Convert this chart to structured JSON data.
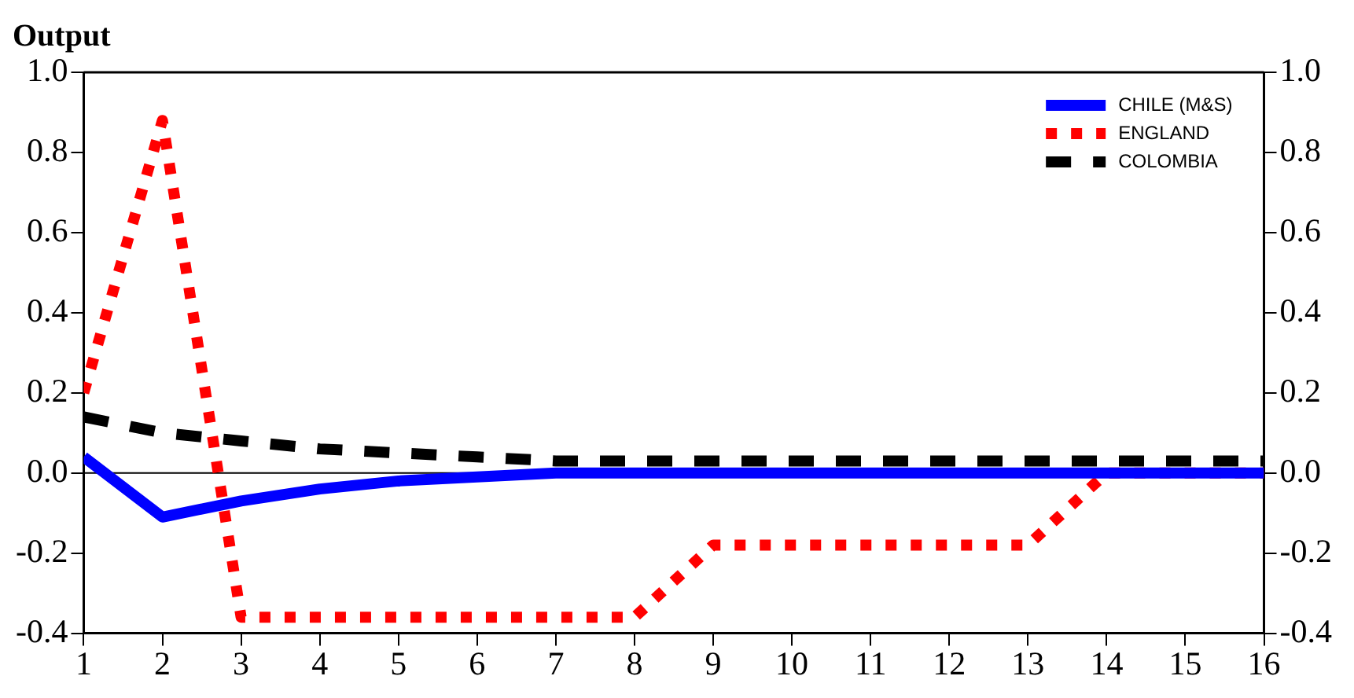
{
  "chart_data": {
    "type": "line",
    "title": "Output",
    "x": [
      1,
      2,
      3,
      4,
      5,
      6,
      7,
      8,
      9,
      10,
      11,
      12,
      13,
      14,
      15,
      16
    ],
    "series": [
      {
        "name": "CHILE (M&S)",
        "color": "#0000ff",
        "line_style": "solid",
        "values": [
          0.04,
          -0.11,
          -0.07,
          -0.04,
          -0.02,
          -0.01,
          0,
          0,
          0,
          0,
          0,
          0,
          0,
          0,
          0,
          0
        ]
      },
      {
        "name": "ENGLAND",
        "color": "#ff0000",
        "line_style": "dotted",
        "values": [
          0.2,
          0.88,
          -0.36,
          -0.36,
          -0.36,
          -0.36,
          -0.36,
          -0.36,
          -0.18,
          -0.18,
          -0.18,
          -0.18,
          -0.18,
          0,
          0,
          0
        ]
      },
      {
        "name": "COLOMBIA",
        "color": "#000000",
        "line_style": "dashed",
        "values": [
          0.14,
          0.1,
          0.08,
          0.06,
          0.05,
          0.04,
          0.03,
          0.03,
          0.03,
          0.03,
          0.03,
          0.03,
          0.03,
          0.03,
          0.03,
          0.03
        ]
      }
    ],
    "xlim": [
      1,
      16
    ],
    "xticks": [
      1,
      2,
      3,
      4,
      5,
      6,
      7,
      8,
      9,
      10,
      11,
      12,
      13,
      14,
      15,
      16
    ],
    "ylim": [
      -0.4,
      1.0
    ],
    "yticks": [
      {
        "value": -0.4,
        "label": "-0.4"
      },
      {
        "value": -0.2,
        "label": "-0.2"
      },
      {
        "value": 0,
        "label": "0.0"
      },
      {
        "value": 0.2,
        "label": "0.2"
      },
      {
        "value": 0.4,
        "label": "0.4"
      },
      {
        "value": 0.6,
        "label": "0.6"
      },
      {
        "value": 0.8,
        "label": "0.8"
      },
      {
        "value": 1.0,
        "label": "1.0"
      }
    ],
    "y2lim": [
      -0.4,
      1.0
    ],
    "y2ticks": [
      {
        "value": -0.4,
        "label": "-0.4"
      },
      {
        "value": -0.2,
        "label": "-0.2"
      },
      {
        "value": 0,
        "label": "0.0"
      },
      {
        "value": 0.2,
        "label": "0.2"
      },
      {
        "value": 0.4,
        "label": "0.4"
      },
      {
        "value": 0.6,
        "label": "0.6"
      },
      {
        "value": 0.8,
        "label": "0.8"
      },
      {
        "value": 1.0,
        "label": "1.0"
      }
    ],
    "ref_lines": [
      {
        "axis": "y",
        "value": 0,
        "color": "#000000"
      }
    ],
    "grid": false,
    "legend": "top right",
    "marker": "none"
  }
}
